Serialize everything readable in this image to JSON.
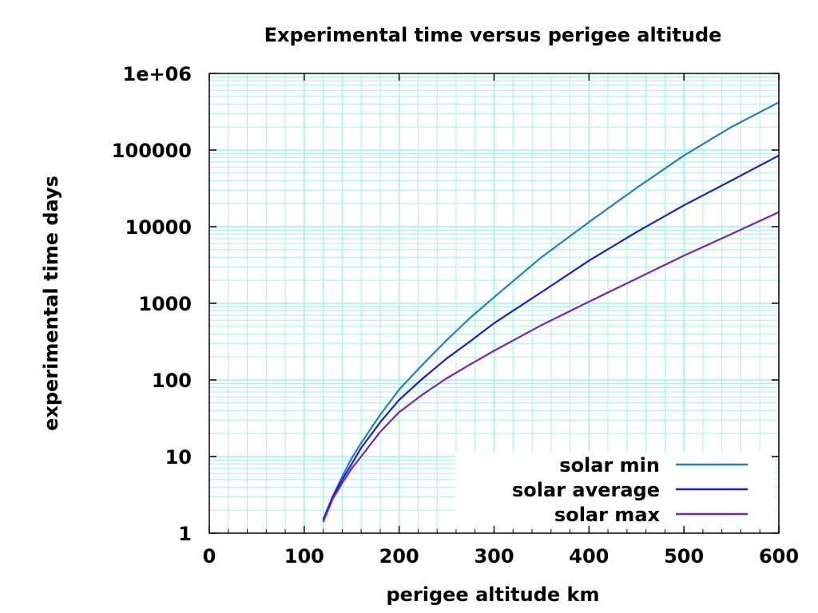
{
  "chart_data": {
    "type": "line",
    "title": "Experimental time versus perigee altitude",
    "xlabel": "perigee altitude km",
    "ylabel": "experimental time days",
    "xlim": [
      0,
      600
    ],
    "ylim": [
      1,
      1000000
    ],
    "yscale": "log",
    "grid": true,
    "legend_position": "bottom-right",
    "x_ticks": [
      0,
      100,
      200,
      300,
      400,
      500,
      600
    ],
    "x_tick_labels": [
      "0",
      "100",
      "200",
      "300",
      "400",
      "500",
      "600"
    ],
    "y_ticks": [
      1,
      10,
      100,
      1000,
      10000,
      100000,
      1000000
    ],
    "y_tick_labels": [
      "1",
      "10",
      "100",
      "1000",
      "10000",
      "100000",
      "1e+06"
    ],
    "colors": {
      "grid": "#9ff5dc",
      "axis": "#000000"
    },
    "series": [
      {
        "name": "solar min",
        "color": "#1f7fbf",
        "x": [
          120,
          130,
          140,
          150,
          160,
          180,
          200,
          225,
          250,
          275,
          300,
          350,
          400,
          450,
          500,
          550,
          600
        ],
        "y": [
          1.5,
          3,
          5.5,
          9.5,
          15,
          35,
          75,
          160,
          330,
          650,
          1200,
          4000,
          11500,
          32000,
          85000,
          200000,
          420000
        ]
      },
      {
        "name": "solar average",
        "color": "#1a1adb",
        "x": [
          120,
          130,
          140,
          150,
          160,
          180,
          200,
          225,
          250,
          275,
          300,
          350,
          400,
          450,
          500,
          550,
          600
        ],
        "y": [
          1.5,
          3,
          5,
          8,
          13,
          28,
          55,
          105,
          190,
          320,
          550,
          1400,
          3600,
          8500,
          19000,
          40000,
          85000
        ]
      },
      {
        "name": "solar max",
        "color": "#7a1fc0",
        "x": [
          120,
          130,
          140,
          150,
          160,
          180,
          200,
          225,
          250,
          275,
          300,
          350,
          400,
          450,
          500,
          550,
          600
        ],
        "y": [
          1.4,
          2.8,
          4.5,
          7,
          10,
          21,
          38,
          65,
          105,
          160,
          240,
          520,
          1050,
          2100,
          4200,
          8000,
          15500
        ]
      }
    ]
  }
}
